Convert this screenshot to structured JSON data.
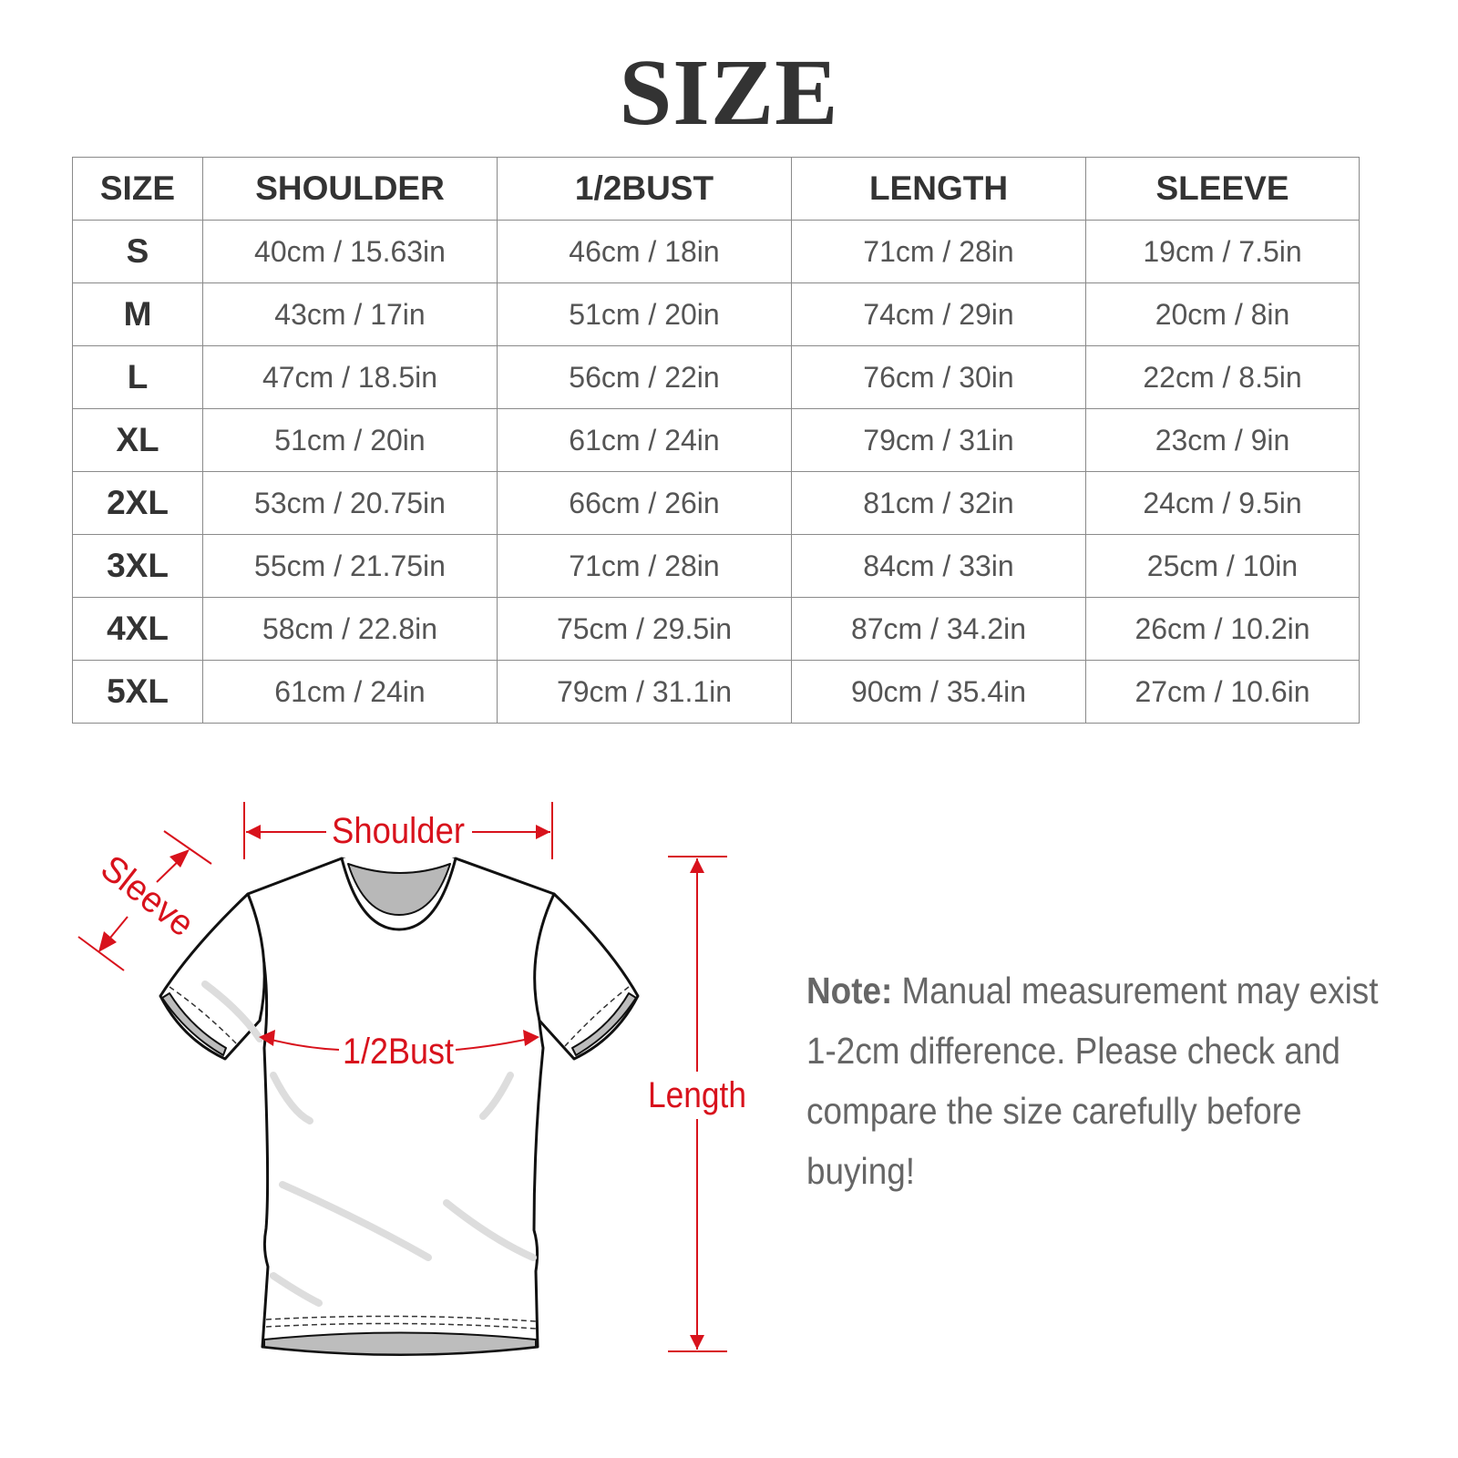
{
  "title": "SIZE",
  "table": {
    "headers": [
      "SIZE",
      "SHOULDER",
      "1/2BUST",
      "LENGTH",
      "SLEEVE"
    ],
    "rows": [
      [
        "S",
        "40cm / 15.63in",
        "46cm / 18in",
        "71cm / 28in",
        "19cm / 7.5in"
      ],
      [
        "M",
        "43cm / 17in",
        "51cm / 20in",
        "74cm / 29in",
        "20cm / 8in"
      ],
      [
        "L",
        "47cm / 18.5in",
        "56cm / 22in",
        "76cm / 30in",
        "22cm / 8.5in"
      ],
      [
        "XL",
        "51cm / 20in",
        "61cm / 24in",
        "79cm / 31in",
        "23cm / 9in"
      ],
      [
        "2XL",
        "53cm / 20.75in",
        "66cm / 26in",
        "81cm / 32in",
        "24cm / 9.5in"
      ],
      [
        "3XL",
        "55cm / 21.75in",
        "71cm / 28in",
        "84cm / 33in",
        "25cm / 10in"
      ],
      [
        "4XL",
        "58cm / 22.8in",
        "75cm / 29.5in",
        "87cm / 34.2in",
        "26cm / 10.2in"
      ],
      [
        "5XL",
        "61cm / 24in",
        "79cm / 31.1in",
        "90cm / 35.4in",
        "27cm / 10.6in"
      ]
    ]
  },
  "diagram": {
    "shoulder": "Shoulder",
    "sleeve": "Sleeve",
    "bust": "1/2Bust",
    "length": "Length",
    "accent_color": "#d8121c"
  },
  "note": {
    "label": "Note:",
    "text": " Manual measurement may exist 1-2cm difference. Please check and compare the size carefully before buying!"
  }
}
